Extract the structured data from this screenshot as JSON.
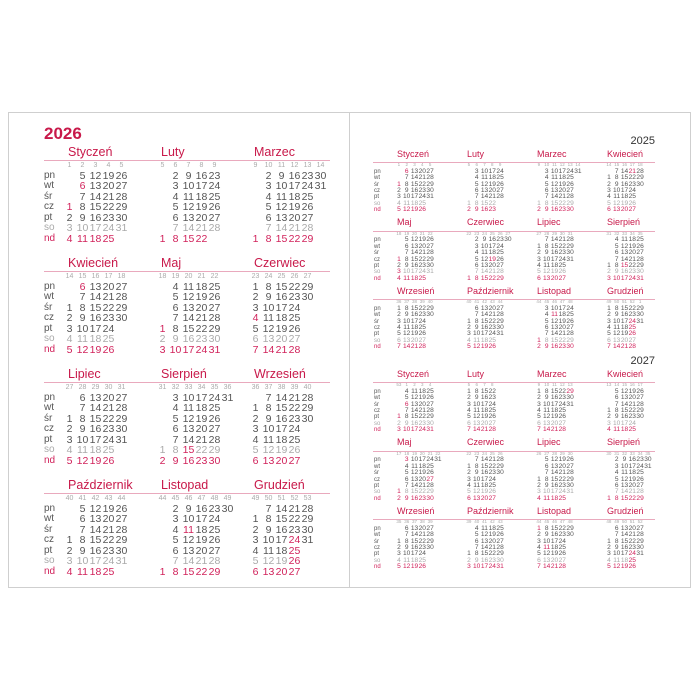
{
  "day_labels": [
    "pn",
    "wt",
    "śr",
    "cz",
    "pt",
    "so",
    "nd"
  ],
  "colors": {
    "accent": "#c8194a",
    "holiday": "#d1225b",
    "saturday": "#aaaaaa",
    "text": "#555555",
    "rule": "#e9a9bd"
  },
  "years": [
    {
      "year": "2026",
      "months": [
        {
          "name": "Styczeń",
          "weeks": [
            1,
            2,
            3,
            4,
            5
          ],
          "start": 3,
          "days": 31,
          "holidays": [
            1,
            6
          ]
        },
        {
          "name": "Luty",
          "weeks": [
            5,
            6,
            7,
            8,
            9
          ],
          "start": 6,
          "days": 28,
          "holidays": []
        },
        {
          "name": "Marzec",
          "weeks": [
            9,
            10,
            11,
            12,
            13,
            14
          ],
          "start": 6,
          "days": 31,
          "holidays": []
        },
        {
          "name": "Kwiecień",
          "weeks": [
            14,
            15,
            16,
            17,
            18
          ],
          "start": 2,
          "days": 30,
          "holidays": [
            5,
            6
          ]
        },
        {
          "name": "Maj",
          "weeks": [
            18,
            19,
            20,
            21,
            22
          ],
          "start": 4,
          "days": 31,
          "holidays": [
            1,
            3,
            24
          ]
        },
        {
          "name": "Czerwiec",
          "weeks": [
            23,
            24,
            25,
            26,
            27
          ],
          "start": 0,
          "days": 30,
          "holidays": [
            4
          ]
        },
        {
          "name": "Lipiec",
          "weeks": [
            27,
            28,
            29,
            30,
            31
          ],
          "start": 2,
          "days": 31,
          "holidays": []
        },
        {
          "name": "Sierpień",
          "weeks": [
            31,
            32,
            33,
            34,
            35,
            36
          ],
          "start": 5,
          "days": 31,
          "holidays": [
            15
          ]
        },
        {
          "name": "Wrzesień",
          "weeks": [
            36,
            37,
            38,
            39,
            40
          ],
          "start": 1,
          "days": 30,
          "holidays": []
        },
        {
          "name": "Październik",
          "weeks": [
            40,
            41,
            42,
            43,
            44
          ],
          "start": 3,
          "days": 31,
          "holidays": []
        },
        {
          "name": "Listopad",
          "weeks": [
            44,
            45,
            46,
            47,
            48,
            49
          ],
          "start": 6,
          "days": 30,
          "holidays": [
            1,
            11
          ]
        },
        {
          "name": "Grudzień",
          "weeks": [
            49,
            50,
            51,
            52,
            53
          ],
          "start": 1,
          "days": 31,
          "holidays": [
            24,
            25,
            26
          ]
        }
      ]
    },
    {
      "year": "2025",
      "months": [
        {
          "name": "Styczeń",
          "weeks": [
            1,
            2,
            3,
            4,
            5
          ],
          "start": 2,
          "days": 31,
          "holidays": [
            1,
            6
          ]
        },
        {
          "name": "Luty",
          "weeks": [
            5,
            6,
            7,
            8,
            9
          ],
          "start": 5,
          "days": 28,
          "holidays": []
        },
        {
          "name": "Marzec",
          "weeks": [
            9,
            10,
            11,
            12,
            13,
            14
          ],
          "start": 5,
          "days": 31,
          "holidays": []
        },
        {
          "name": "Kwiecień",
          "weeks": [
            14,
            15,
            16,
            17,
            18
          ],
          "start": 1,
          "days": 30,
          "holidays": [
            20,
            21
          ]
        },
        {
          "name": "Maj",
          "weeks": [
            18,
            19,
            20,
            21,
            22
          ],
          "start": 3,
          "days": 31,
          "holidays": [
            1,
            3
          ]
        },
        {
          "name": "Czerwiec",
          "weeks": [
            22,
            23,
            24,
            25,
            26,
            27
          ],
          "start": 6,
          "days": 30,
          "holidays": [
            8,
            19
          ]
        },
        {
          "name": "Lipiec",
          "weeks": [
            27,
            28,
            29,
            30,
            31
          ],
          "start": 1,
          "days": 31,
          "holidays": []
        },
        {
          "name": "Sierpień",
          "weeks": [
            31,
            32,
            33,
            34,
            35
          ],
          "start": 4,
          "days": 31,
          "holidays": [
            15
          ]
        },
        {
          "name": "Wrzesień",
          "weeks": [
            36,
            37,
            38,
            39,
            40
          ],
          "start": 0,
          "days": 30,
          "holidays": []
        },
        {
          "name": "Październik",
          "weeks": [
            40,
            41,
            42,
            43,
            44
          ],
          "start": 2,
          "days": 31,
          "holidays": []
        },
        {
          "name": "Listopad",
          "weeks": [
            44,
            45,
            46,
            47,
            48
          ],
          "start": 5,
          "days": 30,
          "holidays": [
            1,
            11
          ]
        },
        {
          "name": "Grudzień",
          "weeks": [
            49,
            50,
            51,
            52,
            1
          ],
          "start": 0,
          "days": 31,
          "holidays": [
            24,
            25,
            26
          ]
        }
      ]
    },
    {
      "year": "2027",
      "months": [
        {
          "name": "Styczeń",
          "weeks": [
            53,
            1,
            2,
            3,
            4
          ],
          "start": 4,
          "days": 31,
          "holidays": [
            1,
            6
          ]
        },
        {
          "name": "Luty",
          "weeks": [
            5,
            6,
            7,
            8
          ],
          "start": 0,
          "days": 28,
          "holidays": []
        },
        {
          "name": "Marzec",
          "weeks": [
            9,
            10,
            11,
            12,
            13
          ],
          "start": 0,
          "days": 31,
          "holidays": [
            28,
            29
          ]
        },
        {
          "name": "Kwiecień",
          "weeks": [
            13,
            14,
            15,
            16,
            17
          ],
          "start": 3,
          "days": 30,
          "holidays": []
        },
        {
          "name": "Maj",
          "weeks": [
            17,
            18,
            19,
            20,
            21,
            22
          ],
          "start": 5,
          "days": 31,
          "holidays": [
            1,
            3,
            16,
            27
          ]
        },
        {
          "name": "Czerwiec",
          "weeks": [
            22,
            23,
            24,
            25,
            26
          ],
          "start": 1,
          "days": 30,
          "holidays": []
        },
        {
          "name": "Lipiec",
          "weeks": [
            26,
            27,
            28,
            29,
            30
          ],
          "start": 3,
          "days": 31,
          "holidays": []
        },
        {
          "name": "Sierpień",
          "weeks": [
            30,
            31,
            32,
            33,
            34,
            35
          ],
          "start": 6,
          "days": 31,
          "holidays": [
            15
          ]
        },
        {
          "name": "Wrzesień",
          "weeks": [
            35,
            36,
            37,
            38,
            39
          ],
          "start": 2,
          "days": 30,
          "holidays": []
        },
        {
          "name": "Październik",
          "weeks": [
            39,
            40,
            41,
            42,
            43
          ],
          "start": 4,
          "days": 31,
          "holidays": []
        },
        {
          "name": "Listopad",
          "weeks": [
            44,
            45,
            46,
            47,
            48
          ],
          "start": 0,
          "days": 30,
          "holidays": [
            1,
            11
          ]
        },
        {
          "name": "Grudzień",
          "weeks": [
            48,
            49,
            50,
            51,
            52
          ],
          "start": 2,
          "days": 31,
          "holidays": [
            24,
            25,
            26
          ]
        }
      ]
    }
  ]
}
